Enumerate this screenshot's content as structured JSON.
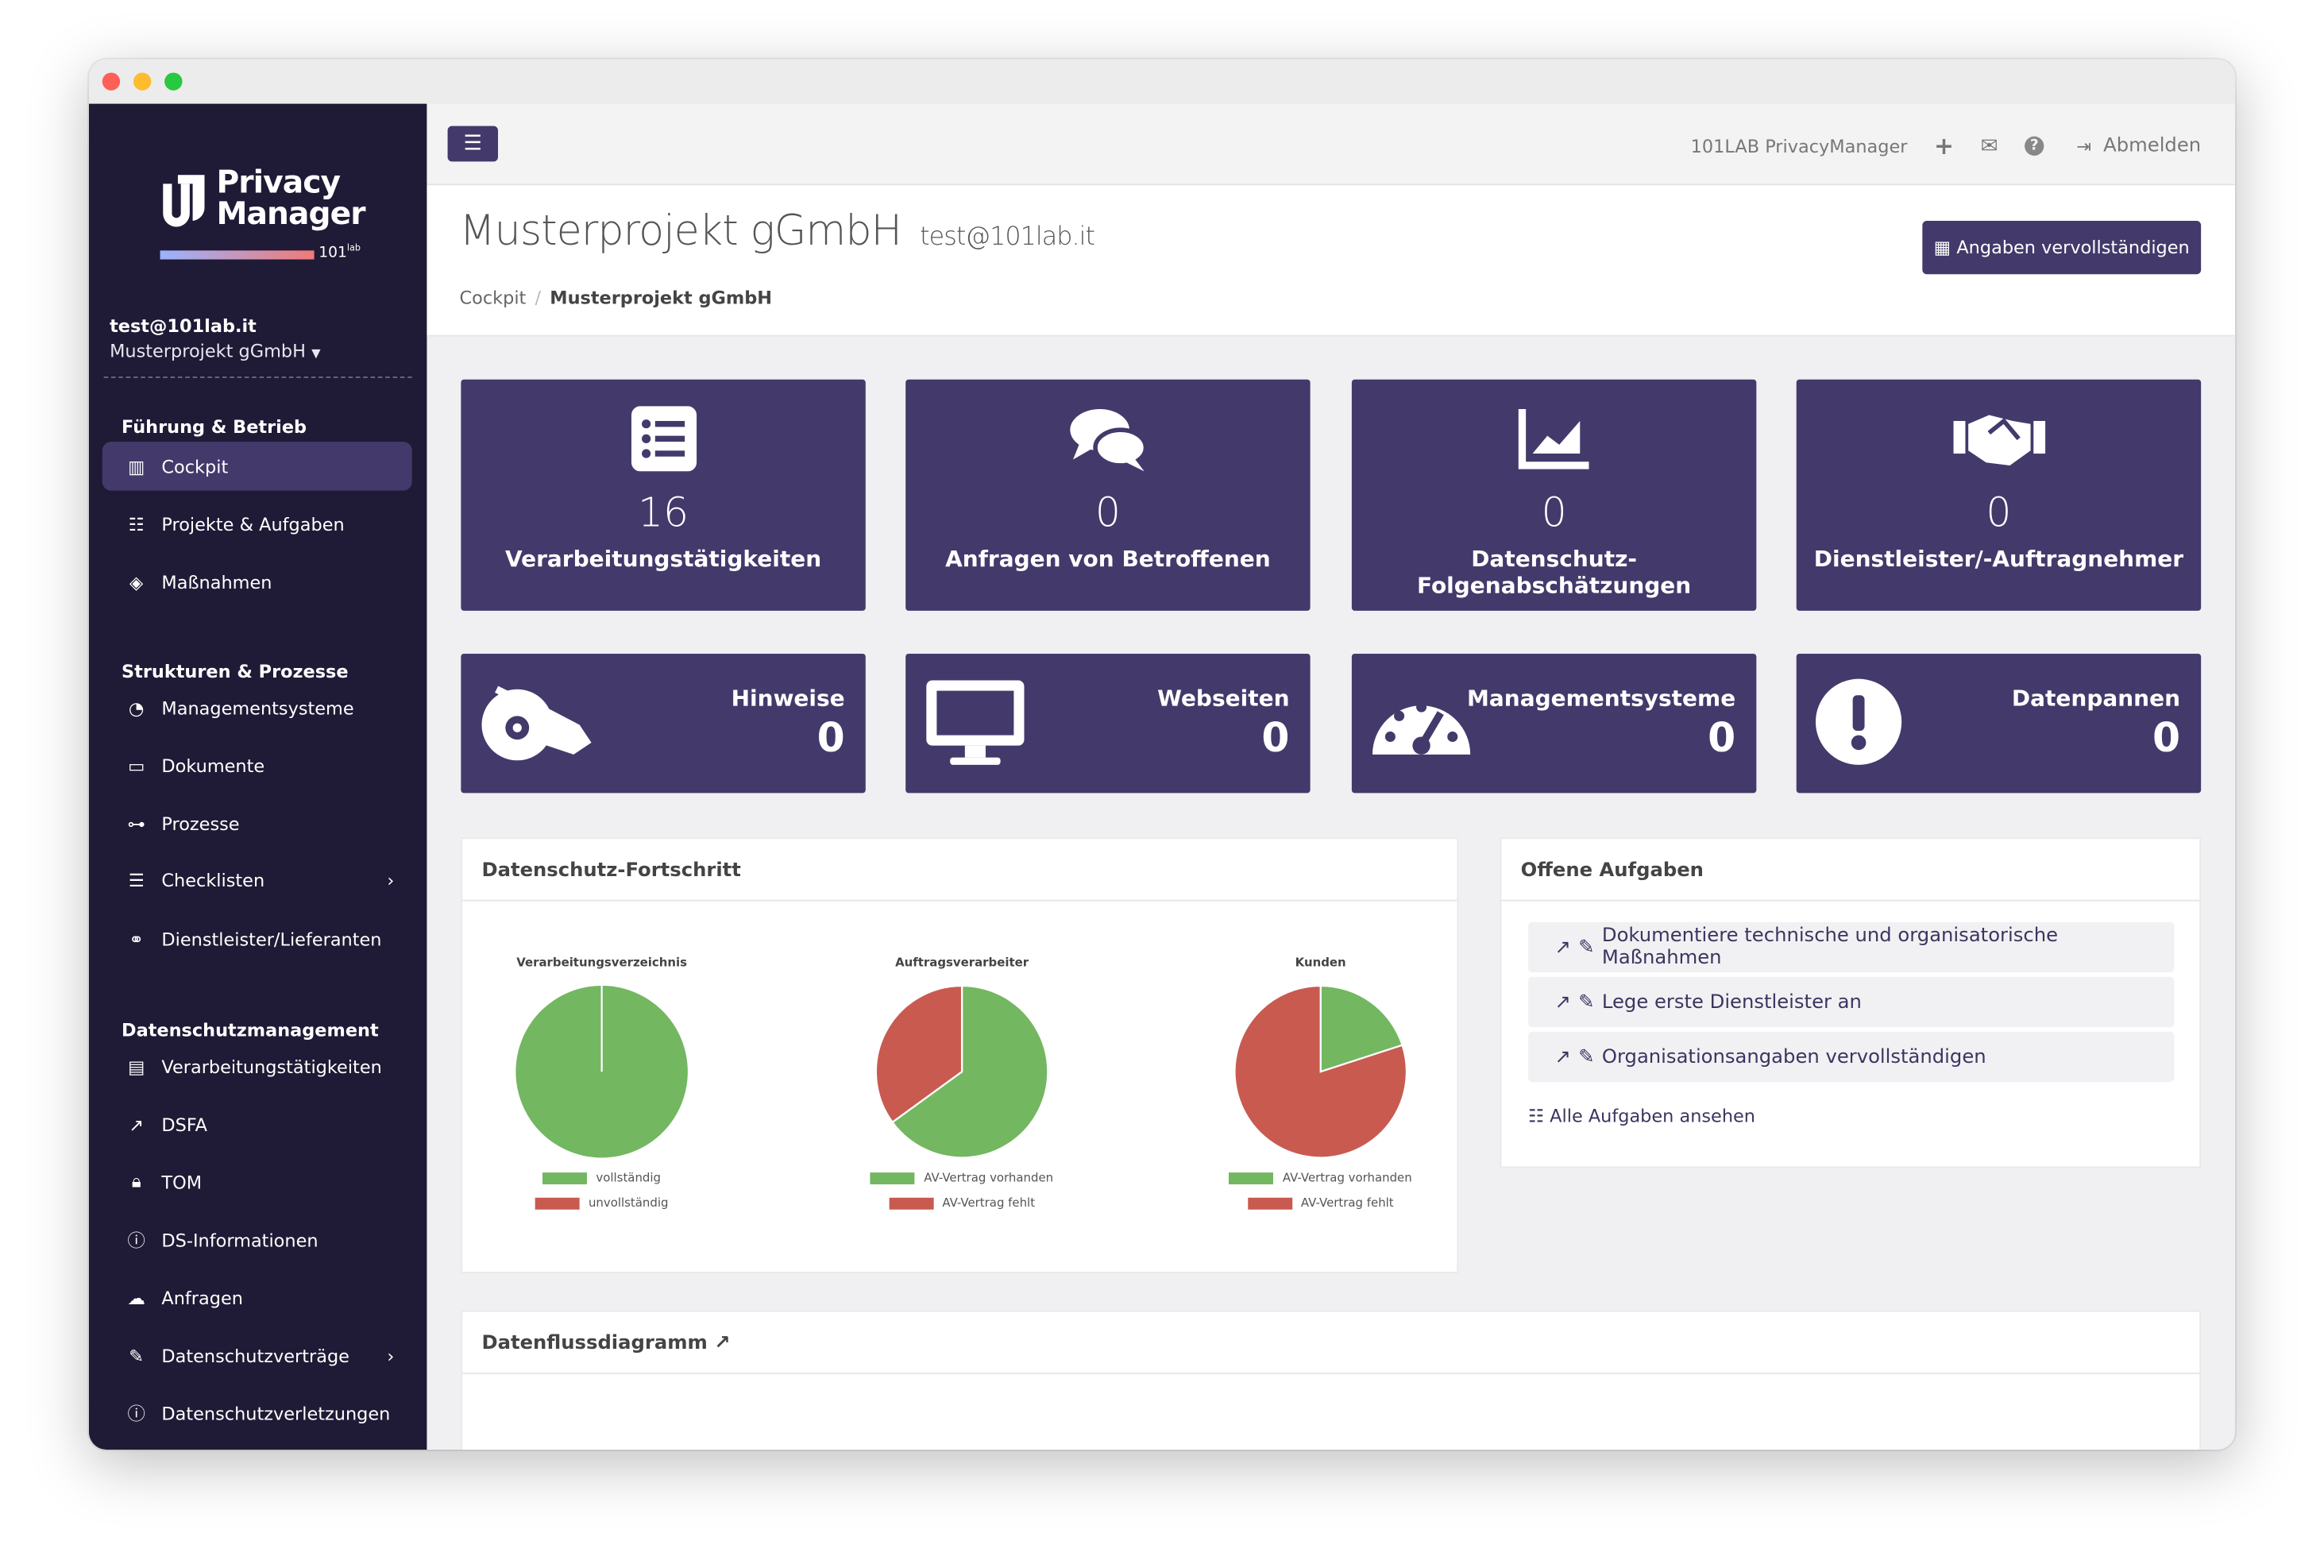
{
  "brand": {
    "logo_line1": "Privacy",
    "logo_line2": "Manager",
    "logo_sub": "101",
    "logo_sup": "lab"
  },
  "user": {
    "email": "test@101lab.it",
    "project": "Musterprojekt gGmbH"
  },
  "sidebar": {
    "sections": [
      {
        "title": "Führung & Betrieb",
        "items": [
          {
            "label": "Cockpit",
            "icon": "chart-bar-icon",
            "active": true
          },
          {
            "label": "Projekte & Aufgaben",
            "icon": "tasks-icon"
          },
          {
            "label": "Maßnahmen",
            "icon": "directions-icon"
          }
        ]
      },
      {
        "title": "Strukturen & Prozesse",
        "items": [
          {
            "label": "Managementsysteme",
            "icon": "gauge-icon"
          },
          {
            "label": "Dokumente",
            "icon": "folder-icon"
          },
          {
            "label": "Prozesse",
            "icon": "sitemap-icon"
          },
          {
            "label": "Checklisten",
            "icon": "list-icon",
            "chevron": true
          },
          {
            "label": "Dienstleister/Lieferanten",
            "icon": "handshake-icon"
          }
        ]
      },
      {
        "title": "Datenschutzmanagement",
        "items": [
          {
            "label": "Verarbeitungstätigkeiten",
            "icon": "list-alt-icon"
          },
          {
            "label": "DSFA",
            "icon": "chart-line-icon"
          },
          {
            "label": "TOM",
            "icon": "lock-icon"
          },
          {
            "label": "DS-Informationen",
            "icon": "info-icon"
          },
          {
            "label": "Anfragen",
            "icon": "comments-icon"
          },
          {
            "label": "Datenschutzverträge",
            "icon": "file-signature-icon",
            "chevron": true
          },
          {
            "label": "Datenschutzverletzungen",
            "icon": "exclamation-circle-icon"
          }
        ]
      }
    ]
  },
  "topbar": {
    "menu_icon": "☰",
    "app_name": "101LAB PrivacyManager",
    "plus": "+",
    "mail": "✉",
    "help": "?",
    "logout_icon": "⇥",
    "logout": "Abmelden"
  },
  "header": {
    "title": "Musterprojekt gGmbH",
    "subtitle": "test@101lab.it",
    "complete_button": "Angaben vervollständigen",
    "breadcrumb": [
      "Cockpit",
      "/",
      "Musterprojekt gGmbH"
    ]
  },
  "stats_big": [
    {
      "value": "16",
      "label": "Verarbeitungstätigkeiten",
      "icon": "list-icon"
    },
    {
      "value": "0",
      "label": "Anfragen von Betroffenen",
      "icon": "comments-icon"
    },
    {
      "value": "0",
      "label": "Datenschutz-Folgenabschätzungen",
      "icon": "chart-area-icon"
    },
    {
      "value": "0",
      "label": "Dienstleister/-Auftragnehmer",
      "icon": "handshake-icon"
    }
  ],
  "stats_small": [
    {
      "value": "0",
      "label": "Hinweise",
      "icon": "whistle-icon"
    },
    {
      "value": "0",
      "label": "Webseiten",
      "icon": "desktop-icon"
    },
    {
      "value": "0",
      "label": "Managementsysteme",
      "icon": "gauge-icon"
    },
    {
      "value": "0",
      "label": "Datenpannen",
      "icon": "exclamation-circle-icon"
    }
  ],
  "progress_panel": {
    "title": "Datenschutz-Fortschritt"
  },
  "chart_data": [
    {
      "type": "pie",
      "title": "Verarbeitungsverzeichnis",
      "labels": [
        "vollständig",
        "unvollständig"
      ],
      "values": [
        100,
        0
      ],
      "colors": [
        "#73b761",
        "#c95a50"
      ],
      "legend": "bottom"
    },
    {
      "type": "pie",
      "title": "Auftragsverarbeiter",
      "labels": [
        "AV-Vertrag vorhanden",
        "AV-Vertrag fehlt"
      ],
      "values": [
        65,
        35
      ],
      "colors": [
        "#73b761",
        "#c95a50"
      ],
      "legend": "bottom"
    },
    {
      "type": "pie",
      "title": "Kunden",
      "labels": [
        "AV-Vertrag vorhanden",
        "AV-Vertrag fehlt"
      ],
      "values": [
        20,
        80
      ],
      "colors": [
        "#73b761",
        "#c95a50"
      ],
      "legend": "bottom"
    }
  ],
  "tasks_panel": {
    "title": "Offene Aufgaben",
    "tasks": [
      "Dokumentiere technische und organisatorische Maßnahmen",
      "Lege erste Dienstleister an",
      "Organisationsangaben vervollständigen"
    ],
    "all_link": "Alle Aufgaben ansehen"
  },
  "flow_panel": {
    "title": "Datenflussdiagramm"
  },
  "colors": {
    "sidebar": "#1f1a35",
    "accent": "#433a6b",
    "green": "#73b761",
    "red": "#c95a50"
  }
}
